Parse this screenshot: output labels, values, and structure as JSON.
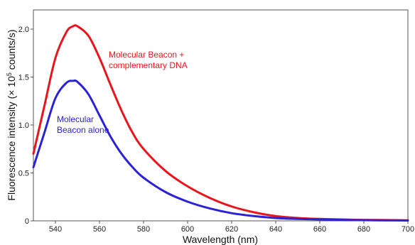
{
  "chart_data": {
    "type": "line",
    "xlabel": "Wavelength (nm)",
    "ylabel_parts": [
      "Fluorescence intensity (× 10",
      "5",
      " counts/s)"
    ],
    "xlim": [
      530,
      700
    ],
    "ylim": [
      0,
      2.2
    ],
    "x_ticks": [
      540,
      560,
      580,
      600,
      620,
      640,
      660,
      680,
      700
    ],
    "y_ticks": [
      0,
      0.5,
      1.0,
      1.5,
      2.0
    ],
    "y_tick_labels": [
      "0",
      "0.5",
      "1.0",
      "1.5",
      "2.0"
    ],
    "grid": false,
    "series": [
      {
        "color": "#e8161c",
        "annotation": [
          "Molecular Beacon +",
          "complementary DNA"
        ],
        "x": [
          530,
          535,
          540,
          545,
          548,
          550,
          555,
          560,
          565,
          570,
          575,
          580,
          590,
          600,
          610,
          620,
          630,
          640,
          650,
          660,
          670,
          680,
          690,
          700
        ],
        "y": [
          0.7,
          1.2,
          1.7,
          1.97,
          2.03,
          2.03,
          1.93,
          1.7,
          1.42,
          1.15,
          0.92,
          0.75,
          0.52,
          0.36,
          0.24,
          0.15,
          0.09,
          0.05,
          0.03,
          0.02,
          0.015,
          0.01,
          0.008,
          0.006
        ]
      },
      {
        "color": "#2b22d6",
        "annotation": [
          "Molecular",
          "Beacon alone"
        ],
        "x": [
          530,
          535,
          540,
          545,
          548,
          550,
          555,
          560,
          565,
          570,
          575,
          580,
          590,
          600,
          610,
          620,
          630,
          640,
          650,
          660,
          670,
          680,
          690,
          700
        ],
        "y": [
          0.56,
          0.92,
          1.28,
          1.44,
          1.46,
          1.45,
          1.32,
          1.1,
          0.88,
          0.7,
          0.56,
          0.45,
          0.3,
          0.2,
          0.13,
          0.08,
          0.05,
          0.03,
          0.02,
          0.015,
          0.01,
          0.007,
          0.005,
          0.004
        ]
      }
    ]
  }
}
